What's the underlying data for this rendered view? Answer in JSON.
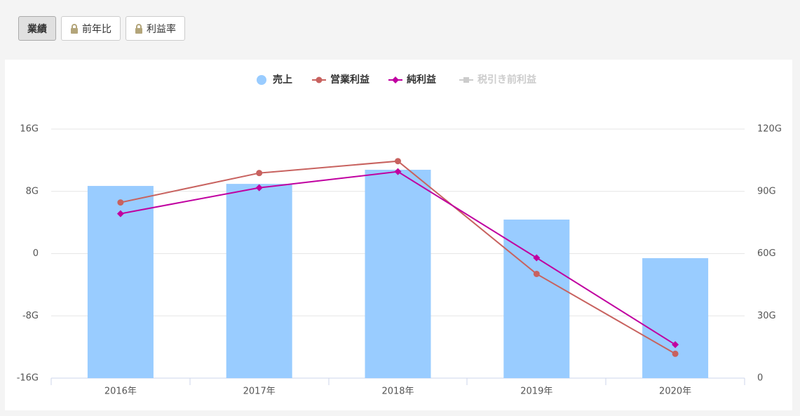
{
  "tabs": [
    {
      "label": "業績",
      "active": true
    },
    {
      "label": "前年比",
      "locked": true
    },
    {
      "label": "利益率",
      "locked": true
    }
  ],
  "chart_data": {
    "type": "bar",
    "categories": [
      "2016年",
      "2017年",
      "2018年",
      "2019年",
      "2020年"
    ],
    "series": [
      {
        "name": "売上",
        "type": "bar",
        "axis": "y2",
        "color": "#99ccff",
        "values": [
          92.6,
          93.6,
          100.4,
          76.4,
          57.8
        ]
      },
      {
        "name": "営業利益",
        "type": "line",
        "marker": "circle",
        "color": "#c8625f",
        "values": [
          6.57,
          10.35,
          11.88,
          -2.61,
          -12.87
        ]
      },
      {
        "name": "純利益",
        "type": "line",
        "marker": "diamond",
        "color": "#c000a0",
        "values": [
          5.13,
          8.46,
          10.53,
          -0.54,
          -11.7
        ]
      },
      {
        "name": "税引き前利益",
        "type": "line",
        "marker": "square",
        "color": "#cccccc",
        "hidden": true,
        "values": [
          null,
          null,
          null,
          null,
          null
        ]
      }
    ],
    "ylim": [
      -16,
      16
    ],
    "yticks": [
      {
        "value": -16,
        "label": "-16G"
      },
      {
        "value": -8,
        "label": "-8G"
      },
      0,
      {
        "value": 8,
        "label": "8G"
      },
      {
        "value": 16,
        "label": "16G"
      }
    ],
    "y2lim": [
      0,
      120
    ],
    "y2ticks": [
      0,
      {
        "value": 30,
        "label": "30G"
      },
      {
        "value": 60,
        "label": "60G"
      },
      {
        "value": 90,
        "label": "90G"
      },
      {
        "value": 120,
        "label": "120G"
      }
    ],
    "grid": true,
    "legend": "top"
  }
}
